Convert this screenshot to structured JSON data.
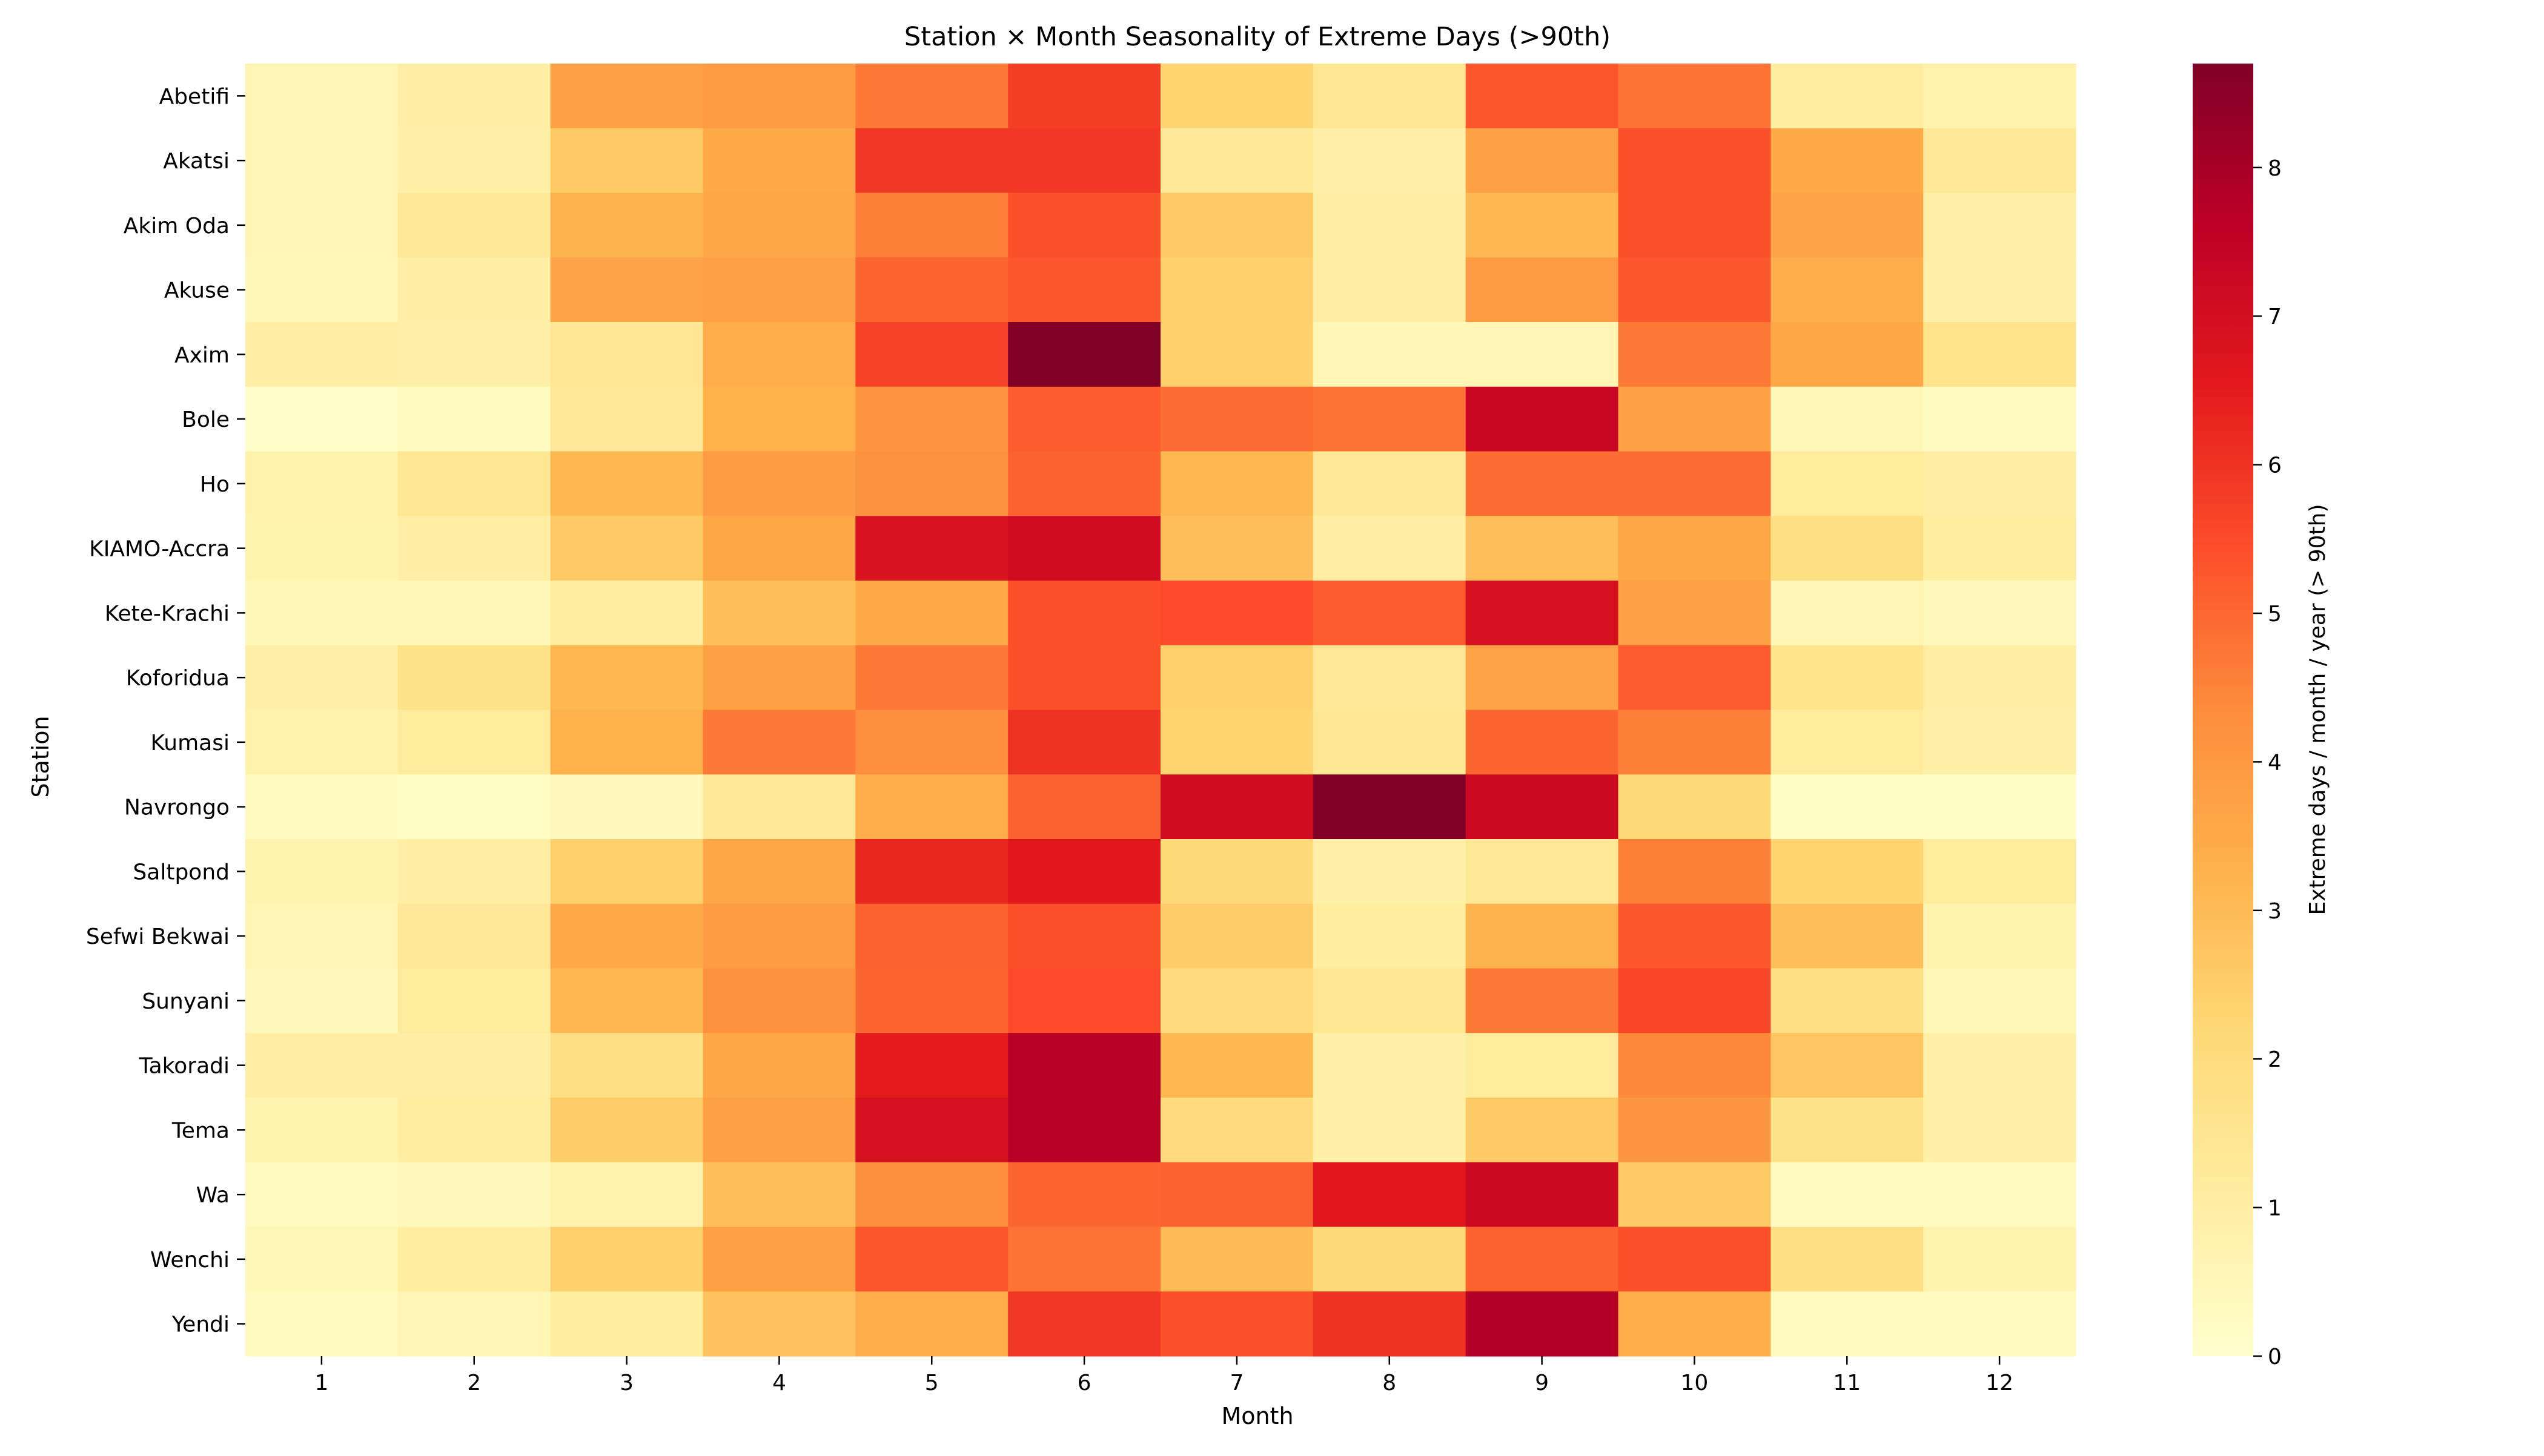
{
  "chart_data": {
    "type": "heatmap",
    "title": "Station × Month Seasonality of Extreme Days (>90th)",
    "xlabel": "Month",
    "ylabel": "Station",
    "colorbar_label": "Extreme days / month / year (> 90th)",
    "colormap": "YlOrRd",
    "colorbar_range": [
      0,
      8.7
    ],
    "colorbar_ticks": [
      "0",
      "1",
      "2",
      "3",
      "4",
      "5",
      "6",
      "7",
      "8"
    ],
    "x": [
      "1",
      "2",
      "3",
      "4",
      "5",
      "6",
      "7",
      "8",
      "9",
      "10",
      "11",
      "12"
    ],
    "y": [
      "Abetifi",
      "Akatsi",
      "Akim Oda",
      "Akuse",
      "Axim",
      "Bole",
      "Ho",
      "KIAMO-Accra",
      "Kete-Krachi",
      "Koforidua",
      "Kumasi",
      "Navrongo",
      "Saltpond",
      "Sefwi Bekwai",
      "Sunyani",
      "Takoradi",
      "Tema",
      "Wa",
      "Wenchi",
      "Yendi"
    ],
    "values": [
      [
        0.6,
        1.0,
        3.8,
        3.9,
        4.7,
        5.8,
        2.3,
        1.4,
        5.3,
        4.8,
        1.1,
        0.8
      ],
      [
        0.6,
        0.9,
        2.6,
        3.5,
        5.9,
        5.9,
        1.3,
        0.9,
        3.8,
        5.4,
        3.5,
        1.3
      ],
      [
        0.6,
        1.3,
        3.2,
        3.6,
        4.6,
        5.4,
        2.6,
        1.0,
        3.1,
        5.4,
        3.7,
        0.9
      ],
      [
        0.5,
        1.0,
        3.7,
        3.8,
        5.0,
        5.3,
        2.4,
        1.0,
        3.9,
        5.3,
        3.4,
        0.9
      ],
      [
        1.0,
        0.9,
        1.4,
        3.4,
        5.7,
        8.7,
        2.4,
        0.6,
        0.6,
        4.7,
        3.6,
        1.6
      ],
      [
        0.1,
        0.3,
        1.3,
        3.3,
        4.1,
        5.2,
        4.9,
        4.8,
        7.3,
        3.8,
        0.5,
        0.3
      ],
      [
        0.8,
        1.4,
        3.1,
        3.9,
        4.2,
        5.1,
        3.1,
        1.3,
        4.9,
        4.9,
        1.2,
        1.0
      ],
      [
        0.7,
        1.0,
        2.6,
        3.6,
        6.8,
        7.1,
        2.9,
        1.0,
        2.9,
        3.6,
        1.8,
        1.1
      ],
      [
        0.5,
        0.5,
        1.1,
        2.9,
        3.5,
        5.4,
        5.5,
        5.2,
        6.9,
        3.8,
        0.6,
        0.4
      ],
      [
        0.9,
        1.7,
        3.1,
        3.8,
        4.7,
        5.4,
        2.4,
        1.3,
        3.7,
        5.2,
        1.6,
        1.0
      ],
      [
        0.8,
        1.2,
        3.3,
        4.7,
        4.3,
        6.0,
        2.3,
        1.4,
        5.0,
        4.6,
        1.2,
        0.9
      ],
      [
        0.3,
        0.2,
        0.4,
        1.3,
        3.4,
        5.1,
        7.1,
        8.7,
        7.2,
        2.1,
        0.2,
        0.2
      ],
      [
        0.7,
        1.0,
        2.4,
        3.6,
        6.3,
        6.6,
        2.1,
        0.9,
        1.3,
        4.6,
        2.3,
        1.2
      ],
      [
        0.6,
        1.3,
        3.5,
        3.9,
        5.1,
        5.4,
        2.5,
        1.1,
        3.2,
        5.3,
        2.9,
        0.7
      ],
      [
        0.4,
        1.2,
        3.1,
        4.2,
        5.0,
        5.5,
        2.0,
        1.4,
        4.7,
        5.6,
        1.8,
        0.5
      ],
      [
        1.0,
        1.0,
        1.8,
        3.6,
        6.5,
        7.7,
        3.1,
        0.9,
        1.2,
        4.4,
        2.7,
        0.9
      ],
      [
        0.7,
        1.1,
        2.5,
        3.8,
        6.9,
        7.7,
        2.0,
        0.9,
        2.6,
        4.1,
        1.7,
        0.9
      ],
      [
        0.3,
        0.4,
        0.8,
        2.9,
        4.3,
        5.0,
        5.1,
        6.6,
        7.2,
        2.6,
        0.3,
        0.3
      ],
      [
        0.5,
        1.1,
        2.4,
        3.8,
        5.3,
        4.8,
        3.0,
        2.1,
        5.1,
        5.4,
        1.8,
        0.7
      ],
      [
        0.3,
        0.6,
        1.1,
        2.8,
        3.4,
        5.9,
        5.4,
        6.0,
        7.8,
        3.4,
        0.3,
        0.3
      ]
    ]
  }
}
